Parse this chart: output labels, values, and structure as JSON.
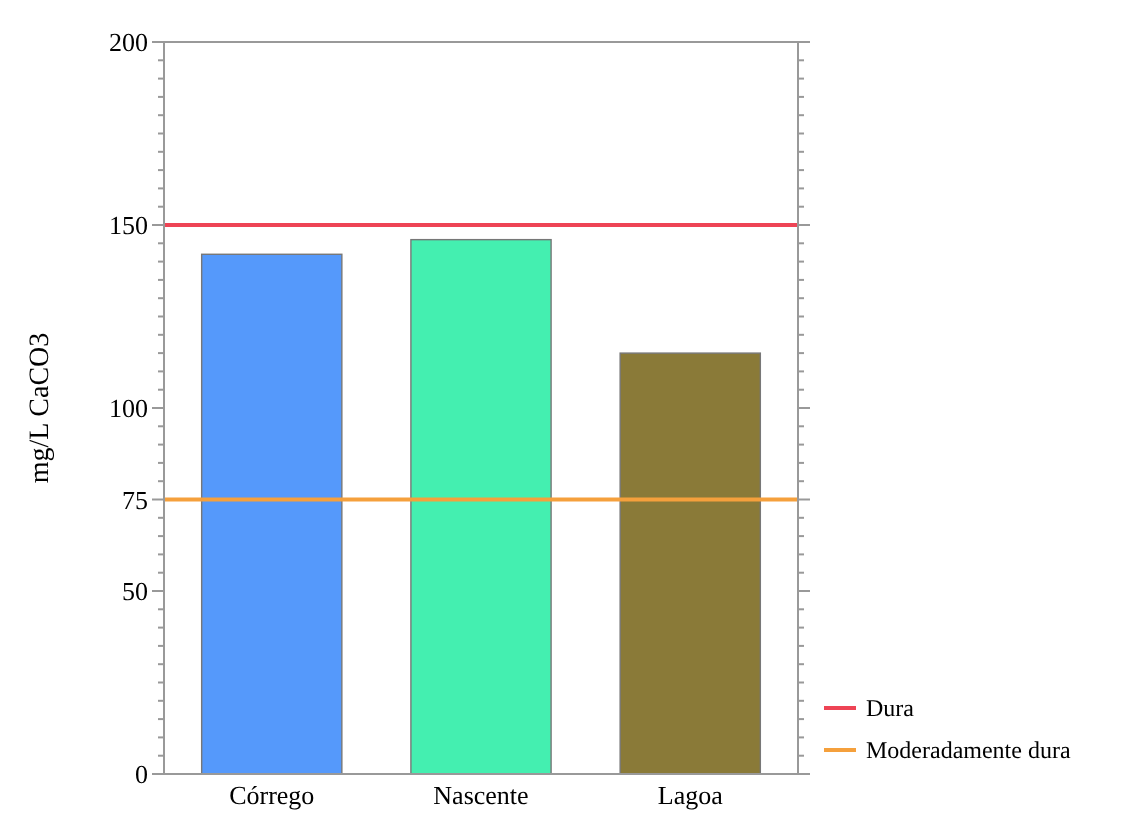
{
  "chart_data": {
    "type": "bar",
    "ylabel": "mg/L CaCO3",
    "categories": [
      "Córrego",
      "Nascente",
      "Lagoa"
    ],
    "values": [
      142,
      146,
      115
    ],
    "colors": [
      "#5599fb",
      "#44efb0",
      "#8a7a38"
    ],
    "ylim": [
      0,
      200
    ],
    "yticks": [
      0,
      {
        "value": 5,
        "label": null
      },
      {
        "value": 10,
        "label": null
      },
      {
        "value": 15,
        "label": null
      },
      {
        "value": 20,
        "label": null
      },
      {
        "value": 25,
        "label": null
      },
      {
        "value": 30,
        "label": null
      },
      {
        "value": 35,
        "label": null
      },
      {
        "value": 40,
        "label": null
      },
      {
        "value": 45,
        "label": null
      },
      50,
      {
        "value": 55,
        "label": null
      },
      {
        "value": 60,
        "label": null
      },
      {
        "value": 65,
        "label": null
      },
      {
        "value": 70,
        "label": null
      },
      75,
      {
        "value": 80,
        "label": null
      },
      {
        "value": 85,
        "label": null
      },
      {
        "value": 90,
        "label": null
      },
      {
        "value": 95,
        "label": null
      },
      100,
      {
        "value": 105,
        "label": null
      },
      {
        "value": 110,
        "label": null
      },
      {
        "value": 115,
        "label": null
      },
      {
        "value": 120,
        "label": null
      },
      {
        "value": 125,
        "label": null
      },
      {
        "value": 130,
        "label": null
      },
      {
        "value": 135,
        "label": null
      },
      {
        "value": 140,
        "label": null
      },
      {
        "value": 145,
        "label": null
      },
      150,
      {
        "value": 155,
        "label": null
      },
      {
        "value": 160,
        "label": null
      },
      {
        "value": 165,
        "label": null
      },
      {
        "value": 170,
        "label": null
      },
      {
        "value": 175,
        "label": null
      },
      {
        "value": 180,
        "label": null
      },
      {
        "value": 185,
        "label": null
      },
      {
        "value": 190,
        "label": null
      },
      {
        "value": 195,
        "label": null
      },
      200
    ],
    "ref_lines": [
      {
        "axis": "y",
        "value": 150,
        "label": "Dura",
        "color": "#ee4455"
      },
      {
        "axis": "y",
        "value": 75,
        "label": "Moderadamente dura",
        "color": "#f5a03c"
      }
    ],
    "legend": "bottom right",
    "grid": false
  }
}
